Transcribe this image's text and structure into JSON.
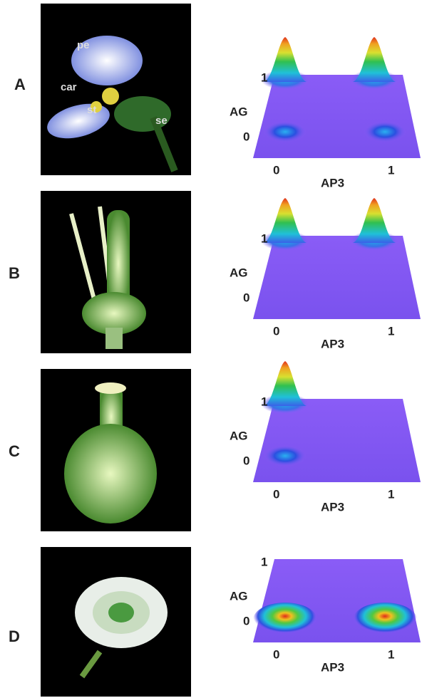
{
  "panels": [
    {
      "label": "A",
      "photo_labels": [
        "pe",
        "car",
        "st",
        "se"
      ],
      "y_axis": {
        "label": "AG",
        "ticks": [
          "1",
          "0"
        ]
      },
      "x_axis": {
        "label": "AP3",
        "ticks": [
          "0",
          "1"
        ]
      }
    },
    {
      "label": "B",
      "y_axis": {
        "label": "AG",
        "ticks": [
          "1",
          "0"
        ]
      },
      "x_axis": {
        "label": "AP3",
        "ticks": [
          "0",
          "1"
        ]
      }
    },
    {
      "label": "C",
      "y_axis": {
        "label": "AG",
        "ticks": [
          "1",
          "0"
        ]
      },
      "x_axis": {
        "label": "AP3",
        "ticks": [
          "0",
          "1"
        ]
      }
    },
    {
      "label": "D",
      "y_axis": {
        "label": "AG",
        "ticks": [
          "1",
          "0"
        ]
      },
      "x_axis": {
        "label": "AP3",
        "ticks": [
          "0",
          "1"
        ]
      }
    }
  ]
}
